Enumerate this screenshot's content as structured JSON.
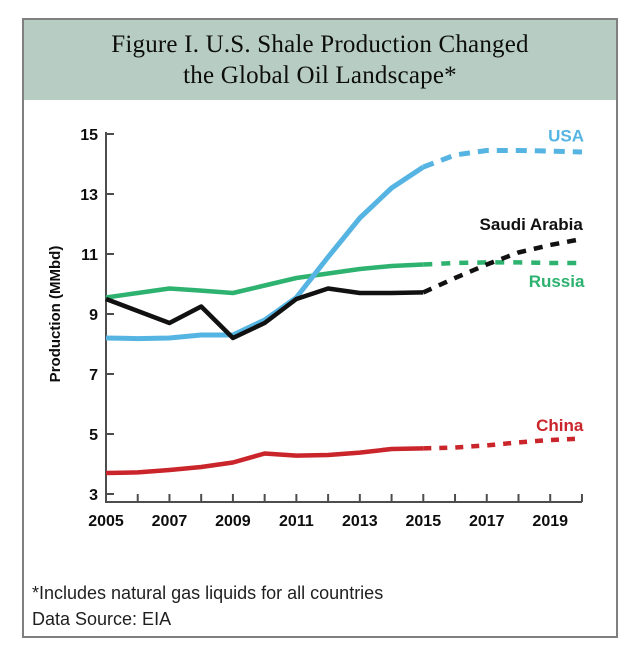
{
  "figure": {
    "title_line1": "Figure I. U.S. Shale Production Changed",
    "title_line2": "the Global Oil Landscape*"
  },
  "footer": {
    "footnote": "*Includes natural gas liquids for all countries",
    "source": "Data Source: EIA"
  },
  "colors": {
    "title_band": "#b7cdc3",
    "frame_border": "#7f7f7f",
    "axis": "#4d4d4d",
    "background": "#ffffff"
  },
  "chart_data": {
    "type": "line",
    "title": "Figure I. U.S. Shale Production Changed the Global Oil Landscape*",
    "ylabel": "Production (MMbd)",
    "ylim": [
      3,
      15
    ],
    "y_ticks": [
      15,
      13,
      11,
      9,
      7,
      5,
      3
    ],
    "x": [
      2005,
      2006,
      2007,
      2008,
      2009,
      2010,
      2011,
      2012,
      2013,
      2014,
      2015,
      2016,
      2017,
      2018,
      2019,
      2020
    ],
    "x_label_years": [
      2005,
      2007,
      2009,
      2011,
      2013,
      2015,
      2017,
      2019
    ],
    "solid_through_year": 2015,
    "grid": false,
    "legend_position": "line-end labels",
    "series": [
      {
        "name": "China",
        "color": "#c9252b",
        "stroke_width": 4.5,
        "dash": "8 8",
        "values": [
          3.7,
          3.72,
          3.8,
          3.9,
          4.05,
          4.35,
          4.28,
          4.3,
          4.38,
          4.5,
          4.52,
          4.55,
          4.62,
          4.72,
          4.8,
          4.85
        ],
        "label": {
          "text": "China",
          "year": 2019.3,
          "value": 5.3
        }
      },
      {
        "name": "Russia",
        "color": "#2eb26f",
        "stroke_width": 4.5,
        "dash": "9 9",
        "values": [
          9.55,
          9.7,
          9.85,
          9.78,
          9.7,
          9.95,
          10.2,
          10.35,
          10.5,
          10.6,
          10.65,
          10.7,
          10.72,
          10.72,
          10.7,
          10.7
        ],
        "label": {
          "text": "Russia",
          "year": 2019.2,
          "value": 10.1
        }
      },
      {
        "name": "USA",
        "color": "#56b4e2",
        "stroke_width": 5,
        "dash": "11 8",
        "values": [
          8.2,
          8.18,
          8.2,
          8.3,
          8.3,
          8.8,
          9.55,
          10.9,
          12.2,
          13.2,
          13.9,
          14.3,
          14.45,
          14.45,
          14.43,
          14.4
        ],
        "label": {
          "text": "USA",
          "year": 2019.5,
          "value": 14.95
        }
      },
      {
        "name": "Saudi Arabia",
        "color": "#111111",
        "stroke_width": 4.5,
        "dash": "9 8",
        "values": [
          9.5,
          9.1,
          8.7,
          9.25,
          8.2,
          8.7,
          9.5,
          9.85,
          9.7,
          9.7,
          9.72,
          10.2,
          10.65,
          11.05,
          11.3,
          11.5
        ],
        "label": {
          "text": "Saudi Arabia",
          "year": 2018.4,
          "value": 12.0
        }
      }
    ]
  }
}
